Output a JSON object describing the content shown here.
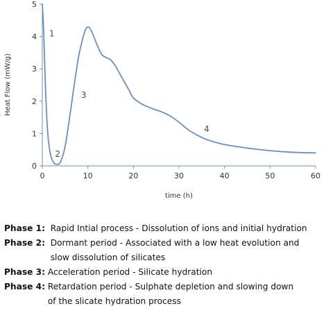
{
  "chart_data": {
    "type": "line",
    "xlabel": "time (h)",
    "ylabel": "Heat Flow (mW/g)",
    "xlim": [
      0,
      60
    ],
    "ylim": [
      0,
      5
    ],
    "xticks": [
      0,
      10,
      20,
      30,
      40,
      50,
      60
    ],
    "yticks": [
      0,
      1,
      2,
      3,
      4,
      5
    ],
    "grid": false,
    "line_color": "#6b8fbd",
    "series": [
      {
        "x": [
          0,
          0.3,
          0.7,
          1.2,
          1.8,
          2.5,
          3.2,
          4.0,
          5.0,
          6.0,
          7.0,
          8.0,
          9.0,
          9.6,
          10.3,
          11.0,
          12.0,
          13.0,
          14.0,
          15.0,
          16.0,
          17.0,
          18.0,
          19.0,
          20.0,
          22.0,
          24.0,
          26.0,
          28.0,
          30.0,
          32.0,
          34.0,
          36.0,
          38.0,
          40.0,
          45.0,
          50.0,
          55.0,
          60.0
        ],
        "y": [
          5.0,
          4.2,
          2.4,
          1.0,
          0.35,
          0.1,
          0.05,
          0.12,
          0.6,
          1.5,
          2.5,
          3.4,
          4.0,
          4.25,
          4.28,
          4.1,
          3.75,
          3.45,
          3.35,
          3.28,
          3.1,
          2.85,
          2.6,
          2.35,
          2.1,
          1.9,
          1.78,
          1.68,
          1.55,
          1.35,
          1.12,
          0.95,
          0.82,
          0.73,
          0.66,
          0.55,
          0.47,
          0.42,
          0.4
        ]
      }
    ],
    "annotations": [
      {
        "text": "1",
        "x": 1.5,
        "y": 4.0
      },
      {
        "text": "2",
        "x": 2.8,
        "y": 0.28
      },
      {
        "text": "3",
        "x": 8.5,
        "y": 2.1
      },
      {
        "text": "4",
        "x": 35.5,
        "y": 1.05
      }
    ]
  },
  "phases": [
    {
      "key": "Phase 1:",
      "text": "Rapid Intial process - Dissolution of ions and initial hydration"
    },
    {
      "key": "Phase 2:",
      "text": "Dormant period - Associated with a low heat evolution and\nslow dissolution of silicates"
    },
    {
      "key": "Phase 3:",
      "text": "Acceleration period - Silicate hydration"
    },
    {
      "key": "Phase 4:",
      "text": "Retardation period - Sulphate depletion and slowing down\nof the slicate hydration process"
    }
  ]
}
